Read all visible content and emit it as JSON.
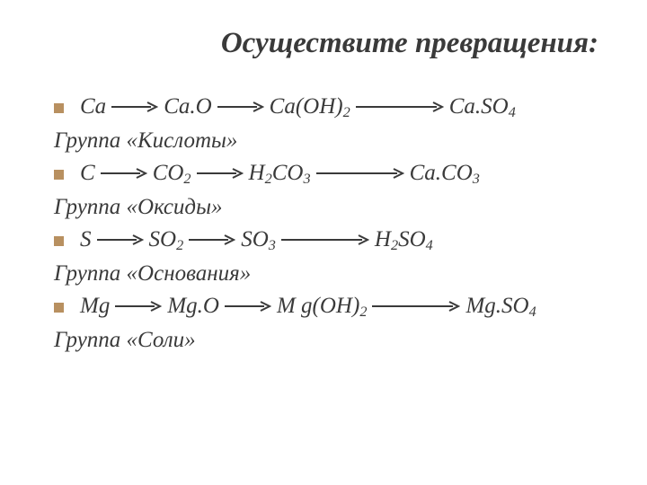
{
  "title": "Осуществите превращения:",
  "rows": [
    {
      "parts": [
        "Ca",
        "arrow",
        "Ca.O",
        "arrow",
        "Ca(OH)",
        "sub2",
        "arrow-long",
        "Ca.SO",
        "sub4"
      ]
    },
    {
      "group": "Группа «Кислоты»"
    },
    {
      "parts": [
        "C",
        "arrow",
        "CO",
        "sub2",
        "arrow",
        "H",
        "sub2",
        "CO",
        "sub3",
        "arrow-long",
        "Ca.CO",
        "sub3"
      ]
    },
    {
      "group": "Группа «Оксиды»"
    },
    {
      "parts": [
        "S",
        "arrow",
        "SO",
        "sub2",
        "arrow",
        "SO",
        "sub3",
        "arrow-long",
        "H",
        "sub2",
        "SO",
        "sub4"
      ]
    },
    {
      "group": "Группа «Основания»"
    },
    {
      "parts": [
        "Mg",
        "arrow",
        "Mg.O",
        "arrow",
        "M g(OH)",
        "sub2",
        "arrow-long",
        "Mg.SO",
        "sub4"
      ]
    },
    {
      "group": "Группа «Соли»"
    }
  ],
  "arrow_color": "#3a3a3a",
  "bullet_color": "#b89060",
  "text_color": "#3a3a3a"
}
